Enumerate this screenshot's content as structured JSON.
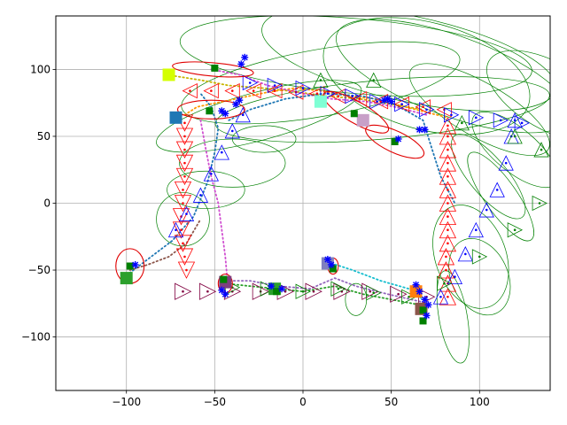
{
  "chart_data": {
    "type": "scatter",
    "title": "",
    "xlabel": "",
    "ylabel": "",
    "xlim": [
      -140,
      140
    ],
    "ylim": [
      -140,
      140
    ],
    "grid": true,
    "x_ticks": [
      -100,
      -50,
      0,
      50,
      100
    ],
    "y_ticks": [
      -100,
      -50,
      0,
      50,
      100
    ],
    "x_tick_labels": [
      "−100",
      "−50",
      "0",
      "50",
      "100"
    ],
    "y_tick_labels": [
      "−100",
      "−50",
      "0",
      "50",
      "100"
    ],
    "colors": {
      "uncertainty_ellipse": "#008000",
      "red_marker": "#ff0000",
      "blue_marker": "#0000ff",
      "maroon_marker": "#800040",
      "landmark": "#008000",
      "observation": "#0000ff",
      "highlight_ellipse": "#e00000"
    },
    "paths": [
      {
        "color": "#ff9900",
        "points": [
          [
            -67,
            66
          ],
          [
            -60,
            72
          ],
          [
            -38,
            78
          ],
          [
            -20,
            83
          ],
          [
            -5,
            86
          ],
          [
            10,
            84
          ],
          [
            26,
            80
          ],
          [
            42,
            78
          ],
          [
            55,
            73
          ],
          [
            70,
            68
          ],
          [
            82,
            64
          ]
        ]
      },
      {
        "color": "#c8b400",
        "points": [
          [
            -77,
            96
          ],
          [
            -58,
            92
          ],
          [
            -42,
            88
          ],
          [
            -22,
            86
          ],
          [
            -8,
            84
          ],
          [
            14,
            80
          ],
          [
            32,
            78
          ],
          [
            50,
            74
          ],
          [
            68,
            70
          ]
        ]
      },
      {
        "color": "#d04fd0",
        "points": [
          [
            -52,
            100
          ],
          [
            -36,
            96
          ],
          [
            -20,
            88
          ],
          [
            0,
            82
          ],
          [
            16,
            78
          ],
          [
            36,
            76
          ],
          [
            52,
            72
          ],
          [
            70,
            66
          ]
        ]
      },
      {
        "color": "#1f77b4",
        "points": [
          [
            -100,
            -54
          ],
          [
            -88,
            -42
          ],
          [
            -74,
            -28
          ],
          [
            -62,
            -10
          ],
          [
            -54,
            16
          ],
          [
            -50,
            38
          ],
          [
            -48,
            56
          ],
          [
            -52,
            72
          ],
          [
            -58,
            82
          ]
        ]
      },
      {
        "color": "#1f77b4",
        "points": [
          [
            -42,
            62
          ],
          [
            -30,
            70
          ],
          [
            -10,
            78
          ],
          [
            12,
            82
          ],
          [
            34,
            80
          ],
          [
            52,
            74
          ],
          [
            68,
            62
          ],
          [
            72,
            45
          ],
          [
            78,
            20
          ],
          [
            86,
            0
          ]
        ]
      },
      {
        "color": "#d04fd0",
        "points": [
          [
            -58,
            62
          ],
          [
            -55,
            40
          ],
          [
            -52,
            20
          ],
          [
            -48,
            0
          ],
          [
            -46,
            -20
          ],
          [
            -44,
            -40
          ],
          [
            -43,
            -55
          ],
          [
            -44,
            -62
          ]
        ]
      },
      {
        "color": "#2ca02c",
        "points": [
          [
            -44,
            -60
          ],
          [
            -30,
            -62
          ],
          [
            -14,
            -64
          ],
          [
            0,
            -66
          ],
          [
            18,
            -62
          ],
          [
            34,
            -68
          ],
          [
            50,
            -72
          ],
          [
            66,
            -76
          ],
          [
            70,
            -80
          ]
        ]
      },
      {
        "color": "#9467bd",
        "points": [
          [
            -46,
            -58
          ],
          [
            -30,
            -58
          ],
          [
            -14,
            -62
          ],
          [
            4,
            -64
          ],
          [
            18,
            -56
          ],
          [
            30,
            -62
          ],
          [
            48,
            -68
          ],
          [
            68,
            -74
          ]
        ]
      },
      {
        "color": "#8c564b",
        "points": [
          [
            -98,
            -50
          ],
          [
            -88,
            -46
          ],
          [
            -76,
            -40
          ],
          [
            -66,
            -30
          ],
          [
            -58,
            -12
          ]
        ]
      },
      {
        "color": "#17becf",
        "points": [
          [
            14,
            -44
          ],
          [
            28,
            -50
          ],
          [
            44,
            -58
          ],
          [
            60,
            -64
          ],
          [
            68,
            -72
          ]
        ]
      }
    ],
    "squares": [
      {
        "x": -76,
        "y": 96,
        "color": "#d4ff00"
      },
      {
        "x": -72,
        "y": 64,
        "color": "#1f77b4"
      },
      {
        "x": -100,
        "y": -56,
        "color": "#2ca02c"
      },
      {
        "x": -44,
        "y": -59,
        "color": "#7f3f7f"
      },
      {
        "x": -16,
        "y": -64,
        "color": "#2ca02c"
      },
      {
        "x": 14,
        "y": -45,
        "color": "#7f7fbf"
      },
      {
        "x": 10,
        "y": 76,
        "color": "#7fffd4"
      },
      {
        "x": 34,
        "y": 62,
        "color": "#c8a0c8"
      },
      {
        "x": 64,
        "y": -66,
        "color": "#ff7f0e"
      },
      {
        "x": 67,
        "y": -79,
        "color": "#8c564b"
      }
    ],
    "landmarks": [
      [
        -50,
        101
      ],
      [
        -53,
        69
      ],
      [
        -98,
        -47
      ],
      [
        -45,
        -57
      ],
      [
        -15,
        -66
      ],
      [
        17,
        -49
      ],
      [
        29,
        67
      ],
      [
        52,
        46
      ],
      [
        68,
        -80
      ],
      [
        68,
        -88
      ]
    ],
    "observations": [
      [
        -35,
        104
      ],
      [
        -33,
        109
      ],
      [
        -38,
        74
      ],
      [
        -36,
        77
      ],
      [
        -44,
        67
      ],
      [
        -46,
        69
      ],
      [
        -95,
        -46
      ],
      [
        -46,
        -65
      ],
      [
        -44,
        -68
      ],
      [
        -18,
        -62
      ],
      [
        -12,
        -64
      ],
      [
        14,
        -42
      ],
      [
        16,
        -46
      ],
      [
        46,
        77
      ],
      [
        48,
        78
      ],
      [
        50,
        76
      ],
      [
        66,
        55
      ],
      [
        69,
        55
      ],
      [
        54,
        48
      ],
      [
        64,
        -61
      ],
      [
        66,
        -66
      ],
      [
        69,
        -72
      ],
      [
        71,
        -76
      ],
      [
        70,
        -84
      ]
    ],
    "highlight_ellipses": [
      {
        "cx": -51,
        "cy": 100,
        "rx": 23,
        "ry": 5,
        "angle": -5
      },
      {
        "cx": -52,
        "cy": 70,
        "rx": 19,
        "ry": 7,
        "angle": 0
      },
      {
        "cx": 30,
        "cy": 68,
        "rx": 21,
        "ry": 8,
        "angle": -30
      },
      {
        "cx": 52,
        "cy": 46,
        "rx": 18,
        "ry": 8,
        "angle": -25
      },
      {
        "cx": -98,
        "cy": -47,
        "rx": 8,
        "ry": 13,
        "angle": 0
      },
      {
        "cx": -44,
        "cy": -60,
        "rx": 4,
        "ry": 7,
        "angle": 0
      },
      {
        "cx": 17,
        "cy": -47,
        "rx": 3,
        "ry": 6,
        "angle": 0
      }
    ],
    "uncertainty_ellipses": [
      {
        "cx": 30,
        "cy": 110,
        "rx": 100,
        "ry": 28,
        "angle": -5
      },
      {
        "cx": 60,
        "cy": 108,
        "rx": 85,
        "ry": 32,
        "angle": -12
      },
      {
        "cx": 85,
        "cy": 95,
        "rx": 70,
        "ry": 30,
        "angle": -20
      },
      {
        "cx": 10,
        "cy": 90,
        "rx": 80,
        "ry": 25,
        "angle": 10
      },
      {
        "cx": 45,
        "cy": 70,
        "rx": 95,
        "ry": 22,
        "angle": 5
      },
      {
        "cx": 100,
        "cy": 70,
        "rx": 45,
        "ry": 20,
        "angle": -30
      },
      {
        "cx": -25,
        "cy": 65,
        "rx": 60,
        "ry": 18,
        "angle": 15
      },
      {
        "cx": -40,
        "cy": 30,
        "rx": 30,
        "ry": 18,
        "angle": 0
      },
      {
        "cx": -55,
        "cy": 10,
        "rx": 22,
        "ry": 14,
        "angle": 0
      },
      {
        "cx": -68,
        "cy": -12,
        "rx": 15,
        "ry": 20,
        "angle": 0
      },
      {
        "cx": 105,
        "cy": 20,
        "rx": 30,
        "ry": 14,
        "angle": -50
      },
      {
        "cx": 112,
        "cy": 5,
        "rx": 30,
        "ry": 12,
        "angle": -55
      },
      {
        "cx": 95,
        "cy": -40,
        "rx": 20,
        "ry": 40,
        "angle": 20
      },
      {
        "cx": 100,
        "cy": -55,
        "rx": 16,
        "ry": 30,
        "angle": 25
      },
      {
        "cx": 85,
        "cy": -85,
        "rx": 8,
        "ry": 35,
        "angle": 10
      },
      {
        "cx": 120,
        "cy": 40,
        "rx": 30,
        "ry": 16,
        "angle": -40
      },
      {
        "cx": 70,
        "cy": 95,
        "rx": 60,
        "ry": 40,
        "angle": -15
      },
      {
        "cx": 140,
        "cy": 80,
        "rx": 40,
        "ry": 25,
        "angle": -30
      },
      {
        "cx": 30,
        "cy": -72,
        "rx": 6,
        "ry": 12,
        "angle": 0
      },
      {
        "cx": -22,
        "cy": 48,
        "rx": 18,
        "ry": 10,
        "angle": 0
      }
    ],
    "triangle_trails": [
      {
        "color": "#ff0000",
        "dir": "down",
        "size": 9,
        "points": [
          [
            -67,
            60
          ],
          [
            -67,
            50
          ],
          [
            -67,
            40
          ],
          [
            -67,
            30
          ],
          [
            -67,
            20
          ],
          [
            -68,
            10
          ],
          [
            -68,
            0
          ],
          [
            -69,
            -10
          ],
          [
            -69,
            -20
          ],
          [
            -68,
            -30
          ],
          [
            -67,
            -40
          ],
          [
            -66,
            -50
          ]
        ]
      },
      {
        "color": "#ff0000",
        "dir": "up",
        "size": 9,
        "points": [
          [
            82,
            -70
          ],
          [
            82,
            -60
          ],
          [
            81,
            -50
          ],
          [
            81,
            -40
          ],
          [
            82,
            -30
          ],
          [
            82,
            -20
          ],
          [
            82,
            -10
          ],
          [
            82,
            0
          ],
          [
            82,
            10
          ],
          [
            82,
            20
          ],
          [
            82,
            30
          ],
          [
            82,
            40
          ],
          [
            82,
            50
          ],
          [
            82,
            58
          ]
        ]
      },
      {
        "color": "#ff0000",
        "dir": "left",
        "size": 8,
        "points": [
          [
            80,
            70
          ],
          [
            68,
            72
          ],
          [
            56,
            74
          ],
          [
            44,
            76
          ],
          [
            32,
            78
          ],
          [
            20,
            80
          ],
          [
            8,
            82
          ],
          [
            -4,
            83
          ],
          [
            -16,
            84
          ],
          [
            -28,
            84
          ],
          [
            -40,
            84
          ],
          [
            -52,
            84
          ],
          [
            -64,
            84
          ]
        ]
      },
      {
        "color": "#0000ff",
        "dir": "up",
        "size": 8,
        "points": [
          [
            -72,
            -20
          ],
          [
            -66,
            -8
          ],
          [
            -58,
            6
          ],
          [
            -52,
            22
          ],
          [
            -46,
            38
          ],
          [
            -40,
            54
          ],
          [
            -34,
            66
          ]
        ]
      },
      {
        "color": "#0000ff",
        "dir": "up",
        "size": 8,
        "points": [
          [
            78,
            -70
          ],
          [
            86,
            -55
          ],
          [
            92,
            -38
          ],
          [
            98,
            -20
          ],
          [
            104,
            -5
          ],
          [
            110,
            10
          ],
          [
            115,
            30
          ],
          [
            118,
            50
          ],
          [
            120,
            62
          ]
        ]
      },
      {
        "color": "#0000ff",
        "dir": "right",
        "size": 8,
        "points": [
          [
            -30,
            90
          ],
          [
            -16,
            88
          ],
          [
            0,
            86
          ],
          [
            14,
            82
          ],
          [
            28,
            80
          ],
          [
            42,
            76
          ],
          [
            56,
            74
          ],
          [
            70,
            70
          ],
          [
            84,
            66
          ],
          [
            98,
            64
          ],
          [
            112,
            62
          ],
          [
            124,
            60
          ]
        ]
      },
      {
        "color": "#800040",
        "dir": "right",
        "size": 9,
        "points": [
          [
            -68,
            -66
          ],
          [
            -54,
            -66
          ],
          [
            -40,
            -66
          ],
          [
            -24,
            -66
          ],
          [
            -10,
            -66
          ],
          [
            6,
            -66
          ],
          [
            22,
            -66
          ],
          [
            38,
            -66
          ],
          [
            54,
            -68
          ],
          [
            70,
            -70
          ]
        ]
      },
      {
        "color": "#008000",
        "dir": "right",
        "size": 8,
        "points": [
          [
            -40,
            -63
          ],
          [
            -20,
            -64
          ],
          [
            0,
            -66
          ],
          [
            20,
            -64
          ],
          [
            40,
            -67
          ],
          [
            60,
            -70
          ],
          [
            80,
            -60
          ],
          [
            100,
            -40
          ],
          [
            120,
            -20
          ],
          [
            134,
            0
          ]
        ]
      },
      {
        "color": "#008000",
        "dir": "up",
        "size": 8,
        "points": [
          [
            10,
            92
          ],
          [
            40,
            92
          ],
          [
            90,
            60
          ],
          [
            120,
            50
          ],
          [
            135,
            40
          ]
        ]
      }
    ]
  }
}
